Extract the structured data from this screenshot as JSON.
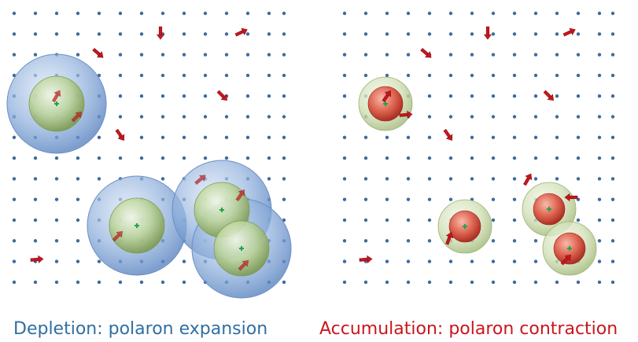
{
  "panels": [
    {
      "id": "left",
      "caption": "Depletion: polaron expansion",
      "caption_color": "#2f6fa3",
      "outer_shell": "blue-sphere",
      "core": "green-sphere",
      "polaron_count": 4,
      "free_arrow_count": 6
    },
    {
      "id": "right",
      "caption": "Accumulation: polaron contraction",
      "caption_color": "#c8161d",
      "outer_shell": "green-sphere",
      "core": "red-sphere",
      "polaron_count": 4,
      "free_arrow_count": 6
    }
  ],
  "colors": {
    "lattice_dot": "#3d6b9e",
    "spin_arrow": "#c8161d",
    "blue_shell": "#7ea1d1",
    "green_sphere": "#a9c67f",
    "red_sphere": "#d2453a",
    "center_mark": "#22a34a"
  }
}
